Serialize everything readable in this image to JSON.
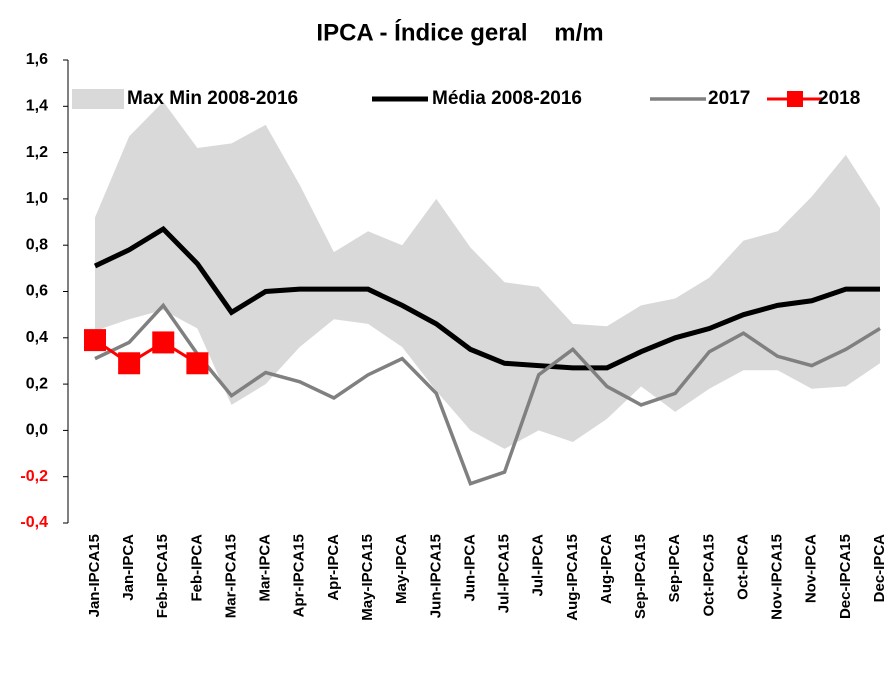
{
  "chart_data": {
    "type": "line",
    "title": "IPCA - Índice geral    m/m",
    "categories": [
      "Jan-IPCA15",
      "Jan-IPCA",
      "Feb-IPCA15",
      "Feb-IPCA",
      "Mar-IPCA15",
      "Mar-IPCA",
      "Apr-IPCA15",
      "Apr-IPCA",
      "May-IPCA15",
      "May-IPCA",
      "Jun-IPCA15",
      "Jun-IPCA",
      "Jul-IPCA15",
      "Jul-IPCA",
      "Aug-IPCA15",
      "Aug-IPCA",
      "Sep-IPCA15",
      "Sep-IPCA",
      "Oct-IPCA15",
      "Oct-IPCA",
      "Nov-IPCA15",
      "Nov-IPCA",
      "Dec-IPCA15",
      "Dec-IPCA"
    ],
    "band": {
      "name": "Max Min 2008-2016",
      "color": "#d9d9d9",
      "high": [
        0.92,
        1.27,
        1.42,
        1.22,
        1.24,
        1.32,
        1.06,
        0.77,
        0.86,
        0.8,
        1.0,
        0.79,
        0.64,
        0.62,
        0.46,
        0.45,
        0.54,
        0.57,
        0.66,
        0.82,
        0.86,
        1.01,
        1.19,
        0.96
      ],
      "low": [
        0.43,
        0.48,
        0.52,
        0.44,
        0.11,
        0.2,
        0.36,
        0.48,
        0.46,
        0.36,
        0.17,
        0.0,
        -0.08,
        0.0,
        -0.05,
        0.05,
        0.19,
        0.08,
        0.18,
        0.26,
        0.26,
        0.18,
        0.19,
        0.29
      ]
    },
    "series": [
      {
        "name": "Média 2008-2016",
        "color": "#000000",
        "values": [
          0.71,
          0.78,
          0.87,
          0.72,
          0.51,
          0.6,
          0.61,
          0.61,
          0.61,
          0.54,
          0.46,
          0.35,
          0.29,
          0.28,
          0.27,
          0.27,
          0.34,
          0.4,
          0.44,
          0.5,
          0.54,
          0.56,
          0.61,
          0.61
        ]
      },
      {
        "name": "2017",
        "color": "#808080",
        "values": [
          0.31,
          0.38,
          0.54,
          0.33,
          0.15,
          0.25,
          0.21,
          0.14,
          0.24,
          0.31,
          0.16,
          -0.23,
          -0.18,
          0.24,
          0.35,
          0.19,
          0.11,
          0.16,
          0.34,
          0.42,
          0.32,
          0.28,
          0.35,
          0.44
        ]
      },
      {
        "name": "2018",
        "color": "#ff0000",
        "values": [
          0.39,
          0.29,
          0.38,
          0.29,
          null,
          null,
          null,
          null,
          null,
          null,
          null,
          null,
          null,
          null,
          null,
          null,
          null,
          null,
          null,
          null,
          null,
          null,
          null,
          null
        ]
      }
    ],
    "ylim": [
      -0.4,
      1.6
    ],
    "yticks": [
      {
        "value": -0.4,
        "label": "-0,4"
      },
      {
        "value": -0.2,
        "label": "-0,2"
      },
      {
        "value": 0,
        "label": "0,0"
      },
      {
        "value": 0.2,
        "label": "0,2"
      },
      {
        "value": 0.4,
        "label": "0,4"
      },
      {
        "value": 0.6,
        "label": "0,6"
      },
      {
        "value": 0.8,
        "label": "0,8"
      },
      {
        "value": 1.0,
        "label": "1,0"
      },
      {
        "value": 1.2,
        "label": "1,2"
      },
      {
        "value": 1.4,
        "label": "1,4"
      },
      {
        "value": 1.6,
        "label": "1,6"
      }
    ],
    "legend": "top"
  }
}
